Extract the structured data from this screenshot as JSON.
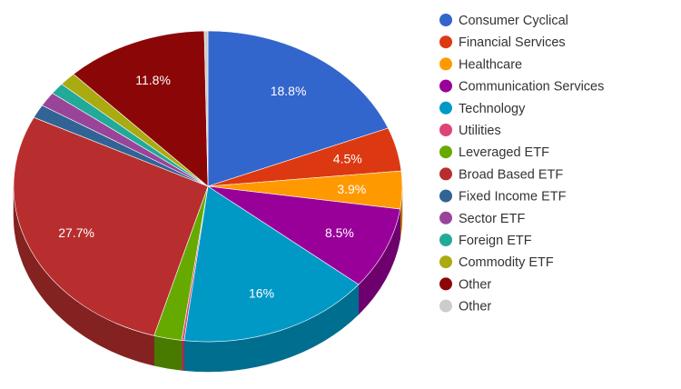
{
  "chart_data": {
    "type": "pie",
    "title": "",
    "three_d": true,
    "legend_position": "right",
    "slices": [
      {
        "name": "Consumer Cyclical",
        "value": 18.8,
        "label": "18.8%",
        "color": "#3366cc"
      },
      {
        "name": "Financial Services",
        "value": 4.5,
        "label": "4.5%",
        "color": "#dc3912"
      },
      {
        "name": "Healthcare",
        "value": 3.9,
        "label": "3.9%",
        "color": "#ff9900"
      },
      {
        "name": "Communication Services",
        "value": 8.5,
        "label": "8.5%",
        "color": "#990099"
      },
      {
        "name": "Technology",
        "value": 16,
        "label": "16%",
        "color": "#0099c6"
      },
      {
        "name": "Utilities",
        "value": 0.2,
        "label": "",
        "color": "#dd4477"
      },
      {
        "name": "Leveraged ETF",
        "value": 2.3,
        "label": "",
        "color": "#66aa00"
      },
      {
        "name": "Broad Based ETF",
        "value": 27.7,
        "label": "27.7%",
        "color": "#b82e2e"
      },
      {
        "name": "Fixed Income ETF",
        "value": 1.4,
        "label": "",
        "color": "#316395"
      },
      {
        "name": "Sector ETF",
        "value": 1.5,
        "label": "",
        "color": "#994499"
      },
      {
        "name": "Foreign ETF",
        "value": 1.2,
        "label": "",
        "color": "#22aa99"
      },
      {
        "name": "Commodity ETF",
        "value": 1.4,
        "label": "",
        "color": "#aaaa11"
      },
      {
        "name": "Other",
        "value": 11.8,
        "label": "11.8%",
        "color": "#8b0707"
      },
      {
        "name": "Other",
        "value": 0.3,
        "label": "",
        "color": "#cccccc"
      }
    ]
  }
}
